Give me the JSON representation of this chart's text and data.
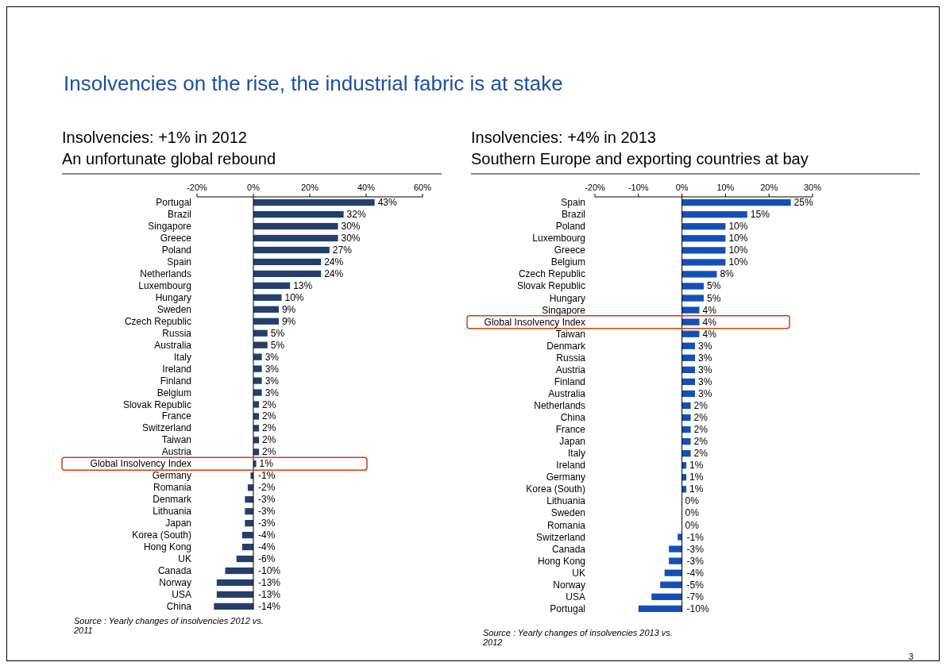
{
  "chart_data": [
    {
      "type": "bar",
      "orientation": "horizontal",
      "title": "Insolvencies: +1% in 2012",
      "subtitle": "An unfortunate global rebound",
      "color": "#243f6b",
      "categories": [
        "Portugal",
        "Brazil",
        "Singapore",
        "Greece",
        "Poland",
        "Spain",
        "Netherlands",
        "Luxembourg",
        "Hungary",
        "Sweden",
        "Czech Republic",
        "Russia",
        "Australia",
        "Italy",
        "Ireland",
        "Finland",
        "Belgium",
        "Slovak Republic",
        "France",
        "Switzerland",
        "Taiwan",
        "Austria",
        "Global Insolvency Index",
        "Germany",
        "Romania",
        "Denmark",
        "Lithuania",
        "Japan",
        "Korea (South)",
        "Hong Kong",
        "UK",
        "Canada",
        "Norway",
        "USA",
        "China"
      ],
      "values": [
        43,
        32,
        30,
        30,
        27,
        24,
        24,
        13,
        10,
        9,
        9,
        5,
        5,
        3,
        3,
        3,
        3,
        2,
        2,
        2,
        2,
        2,
        1,
        -1,
        -2,
        -3,
        -3,
        -3,
        -4,
        -4,
        -6,
        -10,
        -13,
        -13,
        -14
      ],
      "value_labels": [
        "43%",
        "32%",
        "30%",
        "30%",
        "27%",
        "24%",
        "24%",
        "13%",
        "10%",
        "9%",
        "9%",
        "5%",
        "5%",
        "3%",
        "3%",
        "3%",
        "3%",
        "2%",
        "2%",
        "2%",
        "2%",
        "2%",
        "1%",
        "-1%",
        "-2%",
        "-3%",
        "-3%",
        "-3%",
        "-4%",
        "-4%",
        "-6%",
        "-10%",
        "-13%",
        "-13%",
        "-14%"
      ],
      "xlim": [
        -20,
        60
      ],
      "xticks": [
        {
          "value": -20,
          "label": "-20%"
        },
        {
          "value": 0,
          "label": "0%"
        },
        {
          "value": 20,
          "label": "20%"
        },
        {
          "value": 40,
          "label": "40%"
        },
        {
          "value": 60,
          "label": "60%"
        }
      ],
      "annotations": [
        "Insolvencies on the rise, the industrial fabric is at stake",
        "Source : Yearly changes of insolvencies 2012 vs. 2011"
      ]
    },
    {
      "type": "bar",
      "orientation": "horizontal",
      "title": "Insolvencies: +4% in 2013",
      "subtitle": "Southern Europe and exporting countries at bay",
      "color": "#1450b4",
      "categories": [
        "Spain",
        "Brazil",
        "Poland",
        "Luxembourg",
        "Greece",
        "Belgium",
        "Czech Republic",
        "Slovak Republic",
        "Hungary",
        "Singapore",
        "Global Insolvency Index",
        "Taiwan",
        "Denmark",
        "Russia",
        "Austria",
        "Finland",
        "Australia",
        "Netherlands",
        "China",
        "France",
        "Japan",
        "Italy",
        "Ireland",
        "Germany",
        "Korea (South)",
        "Lithuania",
        "Sweden",
        "Romania",
        "Switzerland",
        "Canada",
        "Hong Kong",
        "UK",
        "Norway",
        "USA",
        "Portugal"
      ],
      "values": [
        25,
        15,
        10,
        10,
        10,
        10,
        8,
        5,
        5,
        4,
        4,
        4,
        3,
        3,
        3,
        3,
        3,
        2,
        2,
        2,
        2,
        2,
        1,
        1,
        1,
        0,
        0,
        0,
        -1,
        -3,
        -3,
        -4,
        -5,
        -7,
        -10
      ],
      "value_labels": [
        "25%",
        "15%",
        "10%",
        "10%",
        "10%",
        "10%",
        "8%",
        "5%",
        "5%",
        "4%",
        "4%",
        "4%",
        "3%",
        "3%",
        "3%",
        "3%",
        "3%",
        "2%",
        "2%",
        "2%",
        "2%",
        "2%",
        "1%",
        "1%",
        "1%",
        "0%",
        "0%",
        "0%",
        "-1%",
        "-3%",
        "-3%",
        "-4%",
        "-5%",
        "-7%",
        "-10%"
      ],
      "xlim": [
        -20,
        30
      ],
      "xticks": [
        {
          "value": -20,
          "label": "-20%"
        },
        {
          "value": -10,
          "label": "-10%"
        },
        {
          "value": 0,
          "label": "0%"
        },
        {
          "value": 10,
          "label": "10%"
        },
        {
          "value": 20,
          "label": "20%"
        },
        {
          "value": 30,
          "label": "30%"
        }
      ],
      "annotations": [
        "Source : Yearly changes of insolvencies 2013 vs. 2012",
        "3"
      ]
    }
  ]
}
